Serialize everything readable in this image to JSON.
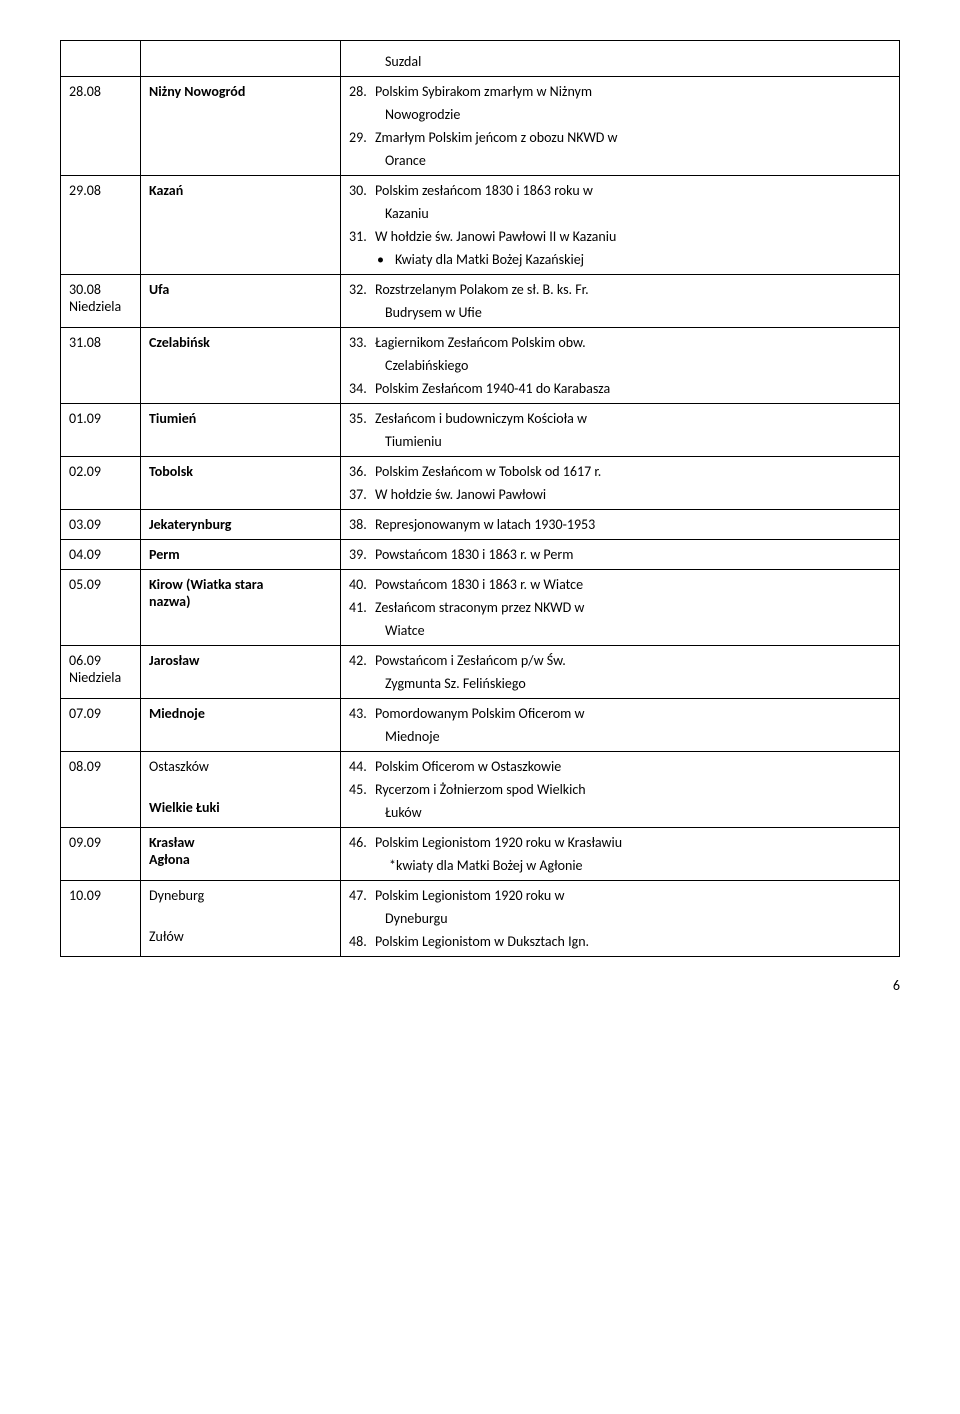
{
  "rows": [
    {
      "c1": "",
      "c2": "",
      "c3": [
        {
          "type": "sub",
          "text": "Suzdal"
        }
      ]
    },
    {
      "c1": "28.08",
      "c2_bold": "Niżny Nowogród",
      "c3": [
        {
          "type": "num",
          "num": "28.",
          "text": "Polskim Sybirakom zmarłym w Niżnym"
        },
        {
          "type": "sub",
          "text": "Nowogrodzie"
        },
        {
          "type": "num",
          "num": "29.",
          "text": "Zmarłym Polskim jeńcom z obozu NKWD w",
          "mt": true
        },
        {
          "type": "sub",
          "text": "Orance"
        }
      ]
    },
    {
      "c1": "29.08",
      "c2_bold": "Kazań",
      "c3": [
        {
          "type": "num",
          "num": "30.",
          "text": "Polskim zesłańcom 1830 i 1863 roku w"
        },
        {
          "type": "sub",
          "text": "Kazaniu"
        },
        {
          "type": "num",
          "num": "31.",
          "text": "W hołdzie św. Janowi Pawłowi II w Kazaniu",
          "mt": true
        },
        {
          "type": "bullet",
          "text": "Kwiaty dla Matki Bożej Kazańskiej"
        }
      ]
    },
    {
      "c1_lines": [
        "30.08",
        "Niedziela"
      ],
      "c2_bold": "Ufa",
      "c3": [
        {
          "type": "num",
          "num": "32.",
          "text": "Rozstrzelanym Polakom ze sł. B. ks. Fr."
        },
        {
          "type": "sub",
          "text": "Budrysem w Ufie"
        }
      ]
    },
    {
      "c1": "31.08",
      "c2_bold": "Czelabińsk",
      "c3": [
        {
          "type": "num",
          "num": "33.",
          "text": "Łagiernikom Zesłańcom Polskim obw."
        },
        {
          "type": "sub",
          "text": "Czelabińskiego"
        },
        {
          "type": "num",
          "num": "34.",
          "text": "Polskim Zesłańcom 1940-41 do Karabasza",
          "mt": true
        }
      ]
    },
    {
      "c1": "01.09",
      "c2_bold": "Tiumień",
      "c3": [
        {
          "type": "num",
          "num": "35.",
          "text": "Zesłańcom i budowniczym Kościoła w"
        },
        {
          "type": "sub",
          "text": "Tiumieniu"
        }
      ]
    },
    {
      "c1": "02.09",
      "c2_bold": "Tobolsk",
      "c3": [
        {
          "type": "num",
          "num": "36.",
          "text": "Polskim Zesłańcom w Tobolsk od 1617 r."
        },
        {
          "type": "num",
          "num": "37.",
          "text": "W hołdzie św. Janowi Pawłowi",
          "mt": true
        }
      ]
    },
    {
      "c1": "03.09",
      "c2_bold": "Jekaterynburg",
      "c3": [
        {
          "type": "num",
          "num": "38.",
          "text": "Represjonowanym w latach 1930-1953"
        }
      ]
    },
    {
      "c1": "04.09",
      "c2_bold": "Perm",
      "c3": [
        {
          "type": "num",
          "num": "39.",
          "text": "Powstańcom 1830 i 1863 r. w Perm"
        }
      ]
    },
    {
      "c1": "05.09",
      "c2_bold_lines": [
        " Kirow (Wiatka stara",
        "nazwa)"
      ],
      "c3": [
        {
          "type": "num",
          "num": "40.",
          "text": "Powstańcom 1830 i 1863 r. w Wiatce"
        },
        {
          "type": "num",
          "num": "41.",
          "text": "Zesłańcom straconym przez NKWD w",
          "mt": true
        },
        {
          "type": "sub",
          "text": "Wiatce"
        }
      ]
    },
    {
      "c1_lines": [
        "06.09",
        "Niedziela"
      ],
      "c2_bold": "Jarosław",
      "c3": [
        {
          "type": "num",
          "num": "42.",
          "text": "Powstańcom i Zesłańcom p/w Św."
        },
        {
          "type": "sub",
          "text": "Zygmunta Sz. Felińskiego"
        }
      ]
    },
    {
      "c1": "07.09",
      "c2_bold": " Miednoje",
      "c3": [
        {
          "type": "num",
          "num": "43.",
          "text": "Pomordowanym Polskim Oficerom w"
        },
        {
          "type": "sub",
          "text": "Miednoje"
        }
      ]
    },
    {
      "c1": "08.09",
      "c2_multi": [
        {
          "text": "Ostaszków",
          "bold": false
        },
        {
          "text": "Wielkie Łuki",
          "bold": true,
          "mt": "24px"
        }
      ],
      "c3": [
        {
          "type": "num",
          "num": "44.",
          "text": "Polskim Oficerom w Ostaszkowie"
        },
        {
          "type": "num",
          "num": "45.",
          "text": "Rycerzom i Żołnierzom spod Wielkich",
          "mt": true
        },
        {
          "type": "sub",
          "text": "Łuków"
        }
      ]
    },
    {
      "c1": "09.09",
      "c2_bold_lines": [
        "Krasław",
        "Agłona"
      ],
      "c3": [
        {
          "type": "num",
          "num": "46.",
          "text": "Polskim Legionistom 1920 roku w Krasławiu"
        },
        {
          "type": "plain",
          "text": "*kwiaty dla Matki Bożej w Agłonie",
          "ml": "40px",
          "mt": true
        }
      ]
    },
    {
      "c1": "10.09",
      "c2_multi": [
        {
          "text": "Dyneburg",
          "bold": false
        },
        {
          "text": "Zułów",
          "bold": false,
          "mt": "24px"
        }
      ],
      "c3": [
        {
          "type": "num",
          "num": "47.",
          "text": "Polskim Legionistom 1920 roku w"
        },
        {
          "type": "sub",
          "text": "Dyneburgu"
        },
        {
          "type": "num",
          "num": "48.",
          "text": "Polskim Legionistom w Duksztach Ign.",
          "mt": true
        }
      ]
    }
  ],
  "page_number": "6"
}
